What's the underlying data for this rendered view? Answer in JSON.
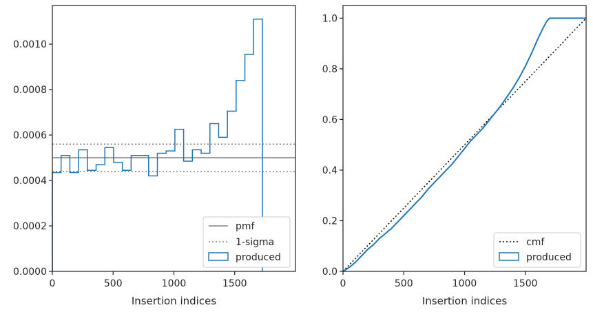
{
  "chart_data": [
    {
      "type": "step",
      "xlabel": "Insertion indices",
      "ylabel": "",
      "xlim": [
        0,
        2000
      ],
      "ylim": [
        0,
        0.00117
      ],
      "xticks": [
        "0",
        "500",
        "1000",
        "1500"
      ],
      "yticks": [
        "0.0000",
        "0.0002",
        "0.0004",
        "0.0006",
        "0.0008",
        "0.0010"
      ],
      "legend_position": "lower right",
      "reference_lines": {
        "pmf": 0.0005,
        "sigma_upper": 0.00056,
        "sigma_lower": 0.00044
      },
      "histogram": {
        "bin_edges": [
          0,
          72,
          144,
          216,
          288,
          360,
          432,
          504,
          576,
          648,
          720,
          792,
          864,
          936,
          1008,
          1080,
          1152,
          1224,
          1296,
          1368,
          1440,
          1512,
          1584,
          1656,
          1728
        ],
        "values": [
          0.000435,
          0.00051,
          0.000435,
          0.000535,
          0.000445,
          0.00047,
          0.000545,
          0.00048,
          0.000445,
          0.00051,
          0.00051,
          0.00042,
          0.00052,
          0.00053,
          0.000625,
          0.000485,
          0.000535,
          0.00052,
          0.00065,
          0.00059,
          0.000705,
          0.00084,
          0.000955,
          0.00111
        ]
      },
      "legend": [
        {
          "label": "pmf",
          "style": "solid",
          "color": "#808080"
        },
        {
          "label": "1-sigma",
          "style": "dotted",
          "color": "#808080"
        },
        {
          "label": "produced",
          "style": "box",
          "color": "#1f77b4"
        }
      ]
    },
    {
      "type": "line",
      "xlabel": "Insertion indices",
      "ylabel": "",
      "xlim": [
        0,
        2000
      ],
      "ylim": [
        0,
        1.05
      ],
      "xticks": [
        "0",
        "500",
        "1000",
        "1500"
      ],
      "yticks": [
        "0.0",
        "0.2",
        "0.4",
        "0.6",
        "0.8",
        "1.0"
      ],
      "legend_position": "lower right",
      "series": [
        {
          "name": "cmf",
          "style": "dotted",
          "color": "#000000",
          "x": [
            0,
            2000
          ],
          "y": [
            0,
            1.0
          ]
        },
        {
          "name": "produced",
          "style": "solid",
          "color": "#1f77b4",
          "x": [
            0,
            50,
            100,
            150,
            200,
            250,
            300,
            350,
            400,
            450,
            500,
            550,
            600,
            650,
            700,
            750,
            800,
            850,
            900,
            950,
            1000,
            1050,
            1100,
            1150,
            1200,
            1250,
            1300,
            1350,
            1400,
            1450,
            1500,
            1550,
            1600,
            1650,
            1680,
            1700,
            1730,
            1800,
            2000
          ],
          "y": [
            0,
            0.015,
            0.035,
            0.06,
            0.085,
            0.105,
            0.13,
            0.15,
            0.17,
            0.195,
            0.22,
            0.245,
            0.27,
            0.295,
            0.325,
            0.35,
            0.375,
            0.4,
            0.425,
            0.455,
            0.485,
            0.515,
            0.54,
            0.565,
            0.595,
            0.625,
            0.655,
            0.69,
            0.725,
            0.765,
            0.81,
            0.86,
            0.915,
            0.965,
            0.99,
            1.0,
            1.0,
            1.0,
            1.0
          ]
        }
      ],
      "legend": [
        {
          "label": "cmf",
          "style": "dotted",
          "color": "#000000"
        },
        {
          "label": "produced",
          "style": "box",
          "color": "#1f77b4"
        }
      ]
    }
  ]
}
